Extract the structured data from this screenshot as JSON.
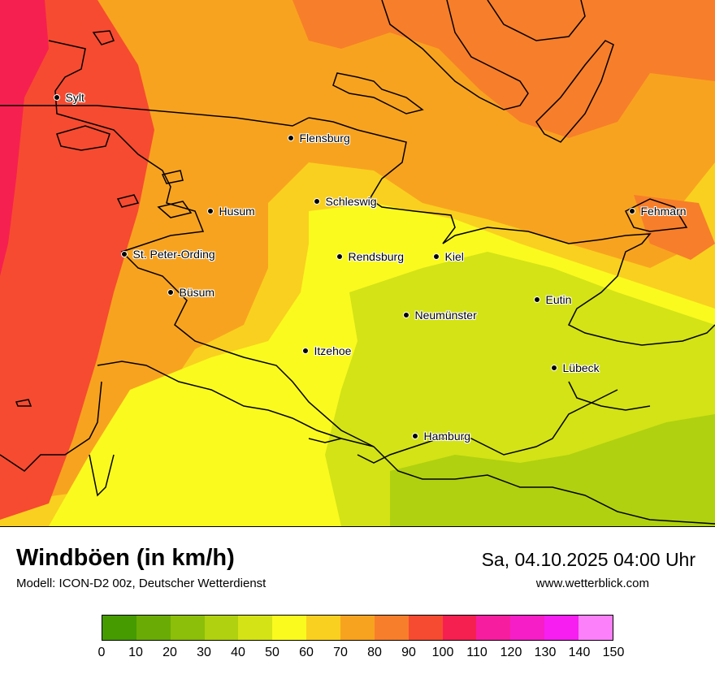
{
  "title": "Windböen (in km/h)",
  "subtitle": "Modell: ICON-D2 00z, Deutscher Wetterdienst",
  "datetime": "Sa, 04.10.2025 04:00 Uhr",
  "website": "www.wetterblick.com",
  "legend": {
    "ticks": [
      "0",
      "10",
      "20",
      "30",
      "40",
      "50",
      "60",
      "70",
      "80",
      "90",
      "100",
      "110",
      "120",
      "130",
      "140",
      "150"
    ],
    "colors": [
      "#459b00",
      "#6aac05",
      "#8bbf09",
      "#b0d10f",
      "#d3e316",
      "#fafa1f",
      "#f9d01f",
      "#f8a31f",
      "#f77e2a",
      "#f64b30",
      "#f62050",
      "#f61e9f",
      "#f61ec6",
      "#f61ef1",
      "#fb80f9"
    ]
  },
  "cities": [
    {
      "id": "sylt",
      "name": "Sylt"
    },
    {
      "id": "flensburg",
      "name": "Flensburg"
    },
    {
      "id": "schleswig",
      "name": "Schleswig"
    },
    {
      "id": "husum",
      "name": "Husum"
    },
    {
      "id": "fehmarn",
      "name": "Fehmarn"
    },
    {
      "id": "st-peter-ording",
      "name": "St. Peter-Ording"
    },
    {
      "id": "rendsburg",
      "name": "Rendsburg"
    },
    {
      "id": "kiel",
      "name": "Kiel"
    },
    {
      "id": "buesum",
      "name": "Büsum"
    },
    {
      "id": "eutin",
      "name": "Eutin"
    },
    {
      "id": "neumuenster",
      "name": "Neumünster"
    },
    {
      "id": "itzehoe",
      "name": "Itzehoe"
    },
    {
      "id": "luebeck",
      "name": "Lübeck"
    },
    {
      "id": "hamburg",
      "name": "Hamburg"
    }
  ]
}
